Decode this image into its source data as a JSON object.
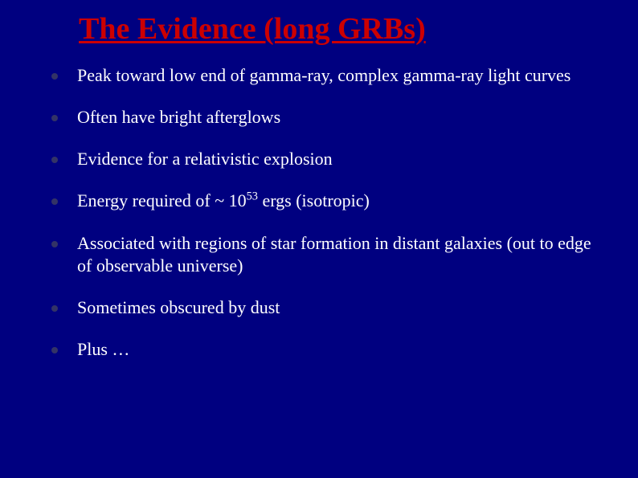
{
  "slide": {
    "title": "The Evidence (long GRBs)",
    "background_color": "#000080",
    "title_color": "#cc0000",
    "text_color": "#ffffff",
    "bullet_color": "#333366",
    "title_fontsize": 38,
    "body_fontsize": 22,
    "font_family": "Times New Roman",
    "bullets": [
      {
        "text": "Peak toward low end of gamma-ray, complex gamma-ray light curves"
      },
      {
        "text": "Often have bright afterglows"
      },
      {
        "text": "Evidence for a relativistic explosion"
      },
      {
        "text_pre": "Energy required of ~ 10",
        "sup": "53",
        "text_post": " ergs (isotropic)"
      },
      {
        "text": "Associated with regions of star formation in distant galaxies (out to edge of observable universe)"
      },
      {
        "text": "Sometimes obscured by dust"
      },
      {
        "text": "Plus …"
      }
    ]
  }
}
